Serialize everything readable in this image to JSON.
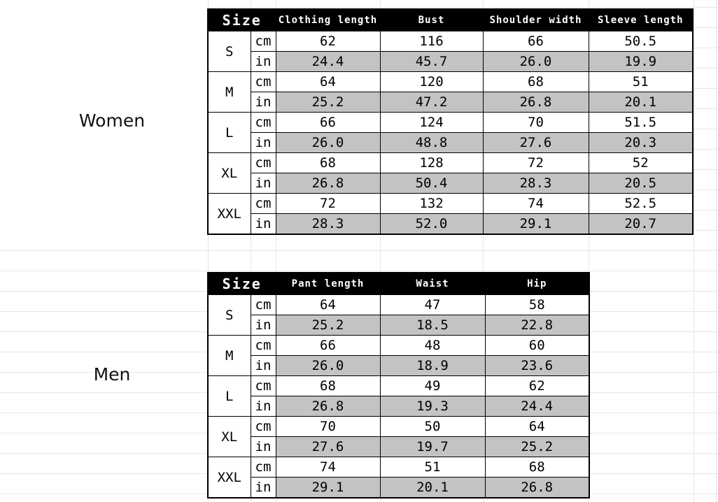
{
  "colors": {
    "background": "#ffffff",
    "gridline": "#e7e7e7",
    "header_bg": "#000000",
    "header_text": "#ffffff",
    "alt_row_bg": "#c3c3c3",
    "border": "#000000"
  },
  "unit_labels": [
    "cm",
    "in"
  ],
  "sections": [
    {
      "label": "Women",
      "columns": [
        "Size",
        "Clothing length",
        "Bust",
        "Shoulder width",
        "Sleeve length"
      ],
      "rows": [
        {
          "size": "S",
          "cm": [
            "62",
            "116",
            "66",
            "50.5"
          ],
          "in": [
            "24.4",
            "45.7",
            "26.0",
            "19.9"
          ]
        },
        {
          "size": "M",
          "cm": [
            "64",
            "120",
            "68",
            "51"
          ],
          "in": [
            "25.2",
            "47.2",
            "26.8",
            "20.1"
          ]
        },
        {
          "size": "L",
          "cm": [
            "66",
            "124",
            "70",
            "51.5"
          ],
          "in": [
            "26.0",
            "48.8",
            "27.6",
            "20.3"
          ]
        },
        {
          "size": "XL",
          "cm": [
            "68",
            "128",
            "72",
            "52"
          ],
          "in": [
            "26.8",
            "50.4",
            "28.3",
            "20.5"
          ]
        },
        {
          "size": "XXL",
          "cm": [
            "72",
            "132",
            "74",
            "52.5"
          ],
          "in": [
            "28.3",
            "52.0",
            "29.1",
            "20.7"
          ]
        }
      ]
    },
    {
      "label": "Men",
      "columns": [
        "Size",
        "Pant length",
        "Waist",
        "Hip"
      ],
      "rows": [
        {
          "size": "S",
          "cm": [
            "64",
            "47",
            "58"
          ],
          "in": [
            "25.2",
            "18.5",
            "22.8"
          ]
        },
        {
          "size": "M",
          "cm": [
            "66",
            "48",
            "60"
          ],
          "in": [
            "26.0",
            "18.9",
            "23.6"
          ]
        },
        {
          "size": "L",
          "cm": [
            "68",
            "49",
            "62"
          ],
          "in": [
            "26.8",
            "19.3",
            "24.4"
          ]
        },
        {
          "size": "XL",
          "cm": [
            "70",
            "50",
            "64"
          ],
          "in": [
            "27.6",
            "19.7",
            "25.2"
          ]
        },
        {
          "size": "XXL",
          "cm": [
            "74",
            "51",
            "68"
          ],
          "in": [
            "29.1",
            "20.1",
            "26.8"
          ]
        }
      ]
    }
  ]
}
